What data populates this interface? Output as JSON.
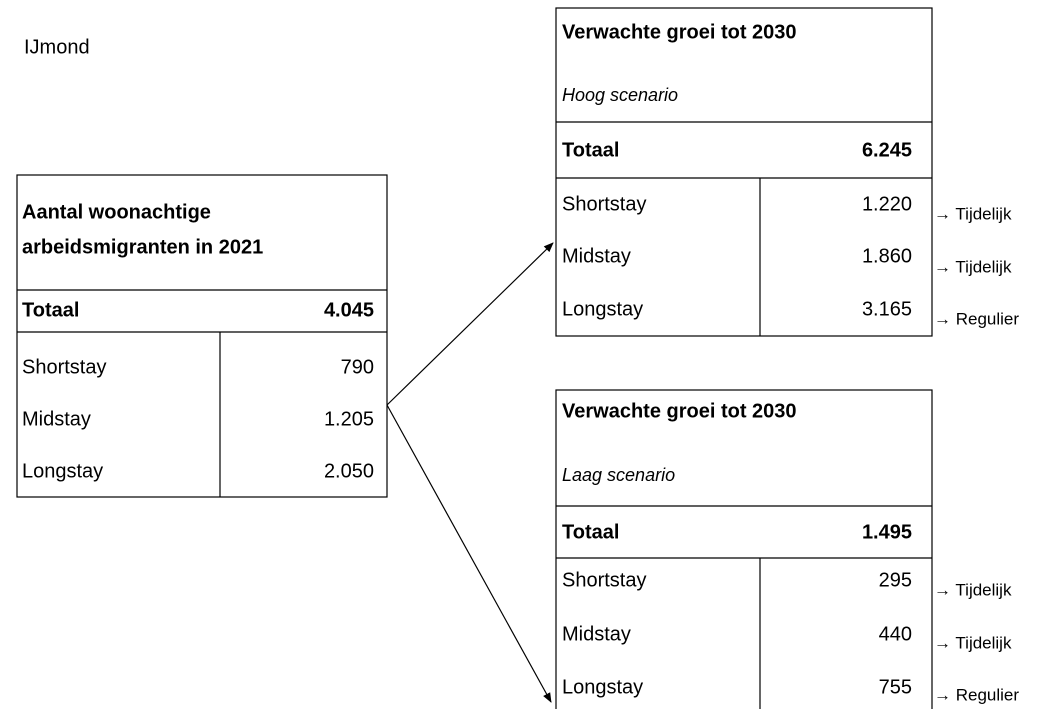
{
  "title": "IJmond",
  "current": {
    "heading": [
      "Aantal woonachtige",
      "arbeidsmigranten in 2021"
    ],
    "total_label": "Totaal",
    "total": "4.045",
    "rows": [
      [
        "Shortstay",
        "790"
      ],
      [
        "Midstay",
        "1.205"
      ],
      [
        "Longstay",
        "2.050"
      ]
    ]
  },
  "high": {
    "heading": "Verwachte groei tot 2030",
    "subheading": "Hoog scenario",
    "total_label": "Totaal",
    "total": "6.245",
    "rows": [
      [
        "Shortstay",
        "1.220",
        "→ Tijdelijk"
      ],
      [
        "Midstay",
        "1.860",
        "→ Tijdelijk"
      ],
      [
        "Longstay",
        "3.165",
        "→ Regulier"
      ]
    ]
  },
  "low": {
    "heading": "Verwachte groei tot 2030",
    "subheading": "Laag scenario",
    "total_label": "Totaal",
    "total": "1.495",
    "rows": [
      [
        "Shortstay",
        "295",
        "→ Tijdelijk"
      ],
      [
        "Midstay",
        "440",
        "→ Tijdelijk"
      ],
      [
        "Longstay",
        "755",
        "→ Regulier"
      ]
    ]
  }
}
